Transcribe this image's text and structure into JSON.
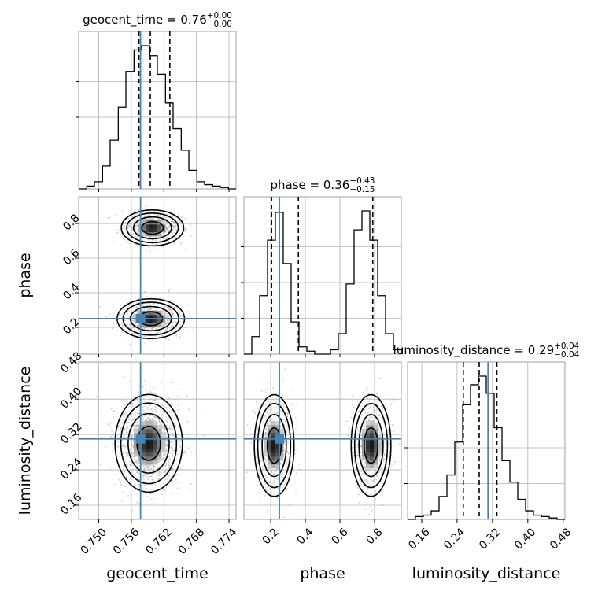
{
  "chart_data": {
    "type": "corner",
    "parameters": [
      "geocent_time",
      "phase",
      "luminosity_distance"
    ],
    "truths": {
      "geocent_time": 0.7577,
      "phase": 0.25,
      "luminosity_distance": 0.31
    },
    "truth_color": "#4682b4",
    "grid": true,
    "titles": {
      "geocent_time": {
        "label": "geocent_time",
        "value": "0.76",
        "plus": "+0.00",
        "minus": "−0.00"
      },
      "phase": {
        "label": "phase",
        "value": "0.36",
        "plus": "+0.43",
        "minus": "−0.15"
      },
      "luminosity_distance": {
        "label": "luminosity_distance",
        "value": "0.29",
        "plus": "+0.04",
        "minus": "−0.04"
      }
    },
    "ticks": {
      "geocent_time": [
        "0.750",
        "0.756",
        "0.762",
        "0.768",
        "0.774"
      ],
      "phase": [
        "0.2",
        "0.4",
        "0.6",
        "0.8"
      ],
      "luminosity_distance": [
        "0.16",
        "0.24",
        "0.32",
        "0.40",
        "0.48"
      ]
    },
    "hist_geocent_time": {
      "range": [
        0.7463,
        0.7753
      ],
      "edges": [
        0.7463,
        0.7478,
        0.7492,
        0.7507,
        0.7521,
        0.7536,
        0.755,
        0.7565,
        0.7579,
        0.7594,
        0.7608,
        0.7623,
        0.7637,
        0.7652,
        0.7666,
        0.7681,
        0.7695,
        0.771,
        0.7724,
        0.7739,
        0.7753
      ],
      "counts": [
        0.0,
        0.02,
        0.05,
        0.16,
        0.34,
        0.57,
        0.82,
        0.97,
        1.0,
        0.93,
        0.8,
        0.6,
        0.42,
        0.27,
        0.13,
        0.05,
        0.03,
        0.02,
        0.01,
        0.0
      ],
      "quantiles": [
        0.7574,
        0.7595,
        0.7631
      ]
    },
    "hist_phase": {
      "range": [
        0.045,
        0.955
      ],
      "edges": [
        0.045,
        0.0905,
        0.136,
        0.1815,
        0.227,
        0.2725,
        0.318,
        0.3635,
        0.409,
        0.4545,
        0.5,
        0.5455,
        0.591,
        0.6365,
        0.682,
        0.7275,
        0.773,
        0.8185,
        0.864,
        0.9095,
        0.955
      ],
      "counts": [
        0.0,
        0.12,
        0.4,
        0.78,
        0.97,
        0.62,
        0.22,
        0.05,
        0.02,
        0.0,
        0.0,
        0.03,
        0.14,
        0.48,
        0.85,
        0.98,
        0.78,
        0.4,
        0.14,
        0.03
      ],
      "quantiles": [
        0.205,
        0.36,
        0.79
      ]
    },
    "hist_luminosity_distance": {
      "range": [
        0.128,
        0.484
      ],
      "edges": [
        0.128,
        0.1458,
        0.1636,
        0.1814,
        0.1992,
        0.217,
        0.2348,
        0.2526,
        0.2704,
        0.2882,
        0.306,
        0.3238,
        0.3416,
        0.3594,
        0.3772,
        0.395,
        0.4128,
        0.4306,
        0.4484,
        0.4662,
        0.484
      ],
      "counts": [
        0.0,
        0.02,
        0.03,
        0.06,
        0.16,
        0.31,
        0.54,
        0.8,
        0.94,
        1.0,
        0.88,
        0.64,
        0.41,
        0.26,
        0.14,
        0.06,
        0.03,
        0.02,
        0.01,
        0.0
      ],
      "quantiles": [
        0.254,
        0.29,
        0.33
      ]
    },
    "scatter_phase_vs_geocent_time": {
      "xrange": [
        0.7463,
        0.7753
      ],
      "yrange": [
        0.045,
        0.955
      ],
      "clusters": [
        {
          "center": [
            0.7599,
            0.775
          ],
          "spread": [
            0.0025,
            0.045
          ],
          "weight": 0.5
        },
        {
          "center": [
            0.7596,
            0.25
          ],
          "spread": [
            0.0027,
            0.05
          ],
          "weight": 0.5
        }
      ],
      "contour_levels": [
        0.8,
        1.4,
        1.9,
        2.3
      ]
    },
    "scatter_luminosity_distance_vs_geocent_time": {
      "xrange": [
        0.7463,
        0.7753
      ],
      "yrange": [
        0.128,
        0.484
      ],
      "clusters": [
        {
          "center": [
            0.7592,
            0.3
          ],
          "spread": [
            0.0027,
            0.048
          ],
          "weight": 1.0
        }
      ],
      "contour_levels": [
        0.8,
        1.4,
        1.9,
        2.3
      ]
    },
    "scatter_luminosity_distance_vs_phase": {
      "xrange": [
        0.045,
        0.955
      ],
      "yrange": [
        0.128,
        0.484
      ],
      "clusters": [
        {
          "center": [
            0.22,
            0.295
          ],
          "spread": [
            0.05,
            0.05
          ],
          "weight": 0.5
        },
        {
          "center": [
            0.78,
            0.295
          ],
          "spread": [
            0.05,
            0.05
          ],
          "weight": 0.5
        }
      ],
      "contour_levels": [
        0.8,
        1.4,
        1.9,
        2.3
      ]
    }
  }
}
